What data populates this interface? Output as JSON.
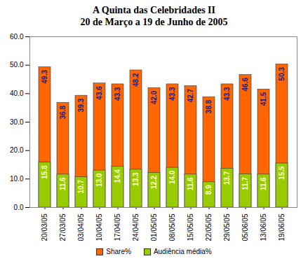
{
  "chart_data": {
    "type": "bar",
    "title": "A Quinta das Celebridades II",
    "subtitle": "20 de Março a 19 de Junho de 2005",
    "categories": [
      "20/03/05",
      "27/03/05",
      "03/04/05",
      "10/04/05",
      "17/04/05",
      "24/04/05",
      "01/05/05",
      "08/05/05",
      "15/05/05",
      "22/05/05",
      "29/05/05",
      "05/06/05",
      "13/06/05",
      "19/06/05"
    ],
    "series": [
      {
        "name": "Share%",
        "color": "#ff6600",
        "values": [
          49.3,
          36.8,
          39.3,
          43.6,
          43.3,
          48.2,
          42.0,
          43.3,
          42.7,
          38.8,
          43.3,
          46.6,
          41.5,
          50.3
        ],
        "value_labels": [
          "49.3",
          "36.8",
          "39.3",
          "43.6",
          "43.3",
          "48.2",
          "42.0",
          "43.3",
          "42.7",
          "38.8",
          "43.3",
          "46.6",
          "41.5",
          "50.3"
        ]
      },
      {
        "name": "Audiência média%",
        "color": "#99cc00",
        "values": [
          15.8,
          11.6,
          10.7,
          13.0,
          14.4,
          13.3,
          12.2,
          14.0,
          11.6,
          8.9,
          13.7,
          11.7,
          11.6,
          15.5
        ],
        "value_labels": [
          "15.8",
          "11.6",
          "10.7",
          "13.0",
          "14.4",
          "13.3",
          "12.2",
          "14.0",
          "11.6",
          "8.9",
          "13.7",
          "11.7",
          "11.6",
          "15.5"
        ]
      }
    ],
    "ylim": [
      0,
      60
    ],
    "yticks": [
      {
        "value": 0,
        "label": "0.0"
      },
      {
        "value": 10,
        "label": "10.0"
      },
      {
        "value": 20,
        "label": "20.0"
      },
      {
        "value": 30,
        "label": "30.0"
      },
      {
        "value": 40,
        "label": "40.0"
      },
      {
        "value": 50,
        "label": "50.0"
      },
      {
        "value": 60,
        "label": "60.0"
      }
    ],
    "grid": false,
    "stacked": false,
    "data_labels": true,
    "legend": "bottom"
  }
}
